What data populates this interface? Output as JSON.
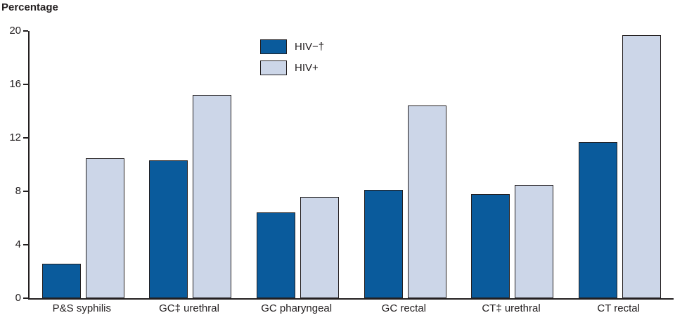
{
  "chart_data": {
    "type": "bar",
    "title": "Percentage",
    "categories": [
      "P&S syphilis",
      "GC‡ urethral",
      "GC pharyngeal",
      "GC rectal",
      "CT‡ urethral",
      "CT rectal"
    ],
    "series": [
      {
        "name": "HIV−†",
        "color": "#0a5b9c",
        "values": [
          2.6,
          10.3,
          6.4,
          8.1,
          7.8,
          11.7
        ]
      },
      {
        "name": "HIV+",
        "color": "#ccd6e8",
        "values": [
          10.5,
          15.2,
          7.6,
          14.4,
          8.5,
          19.7
        ]
      }
    ],
    "ylim": [
      0,
      20
    ],
    "yticks": [
      0,
      4,
      8,
      12,
      16,
      20
    ],
    "xlabel": "",
    "ylabel": "Percentage",
    "grid": false,
    "legend_position": "top-center",
    "axis_color": "#231f20"
  }
}
